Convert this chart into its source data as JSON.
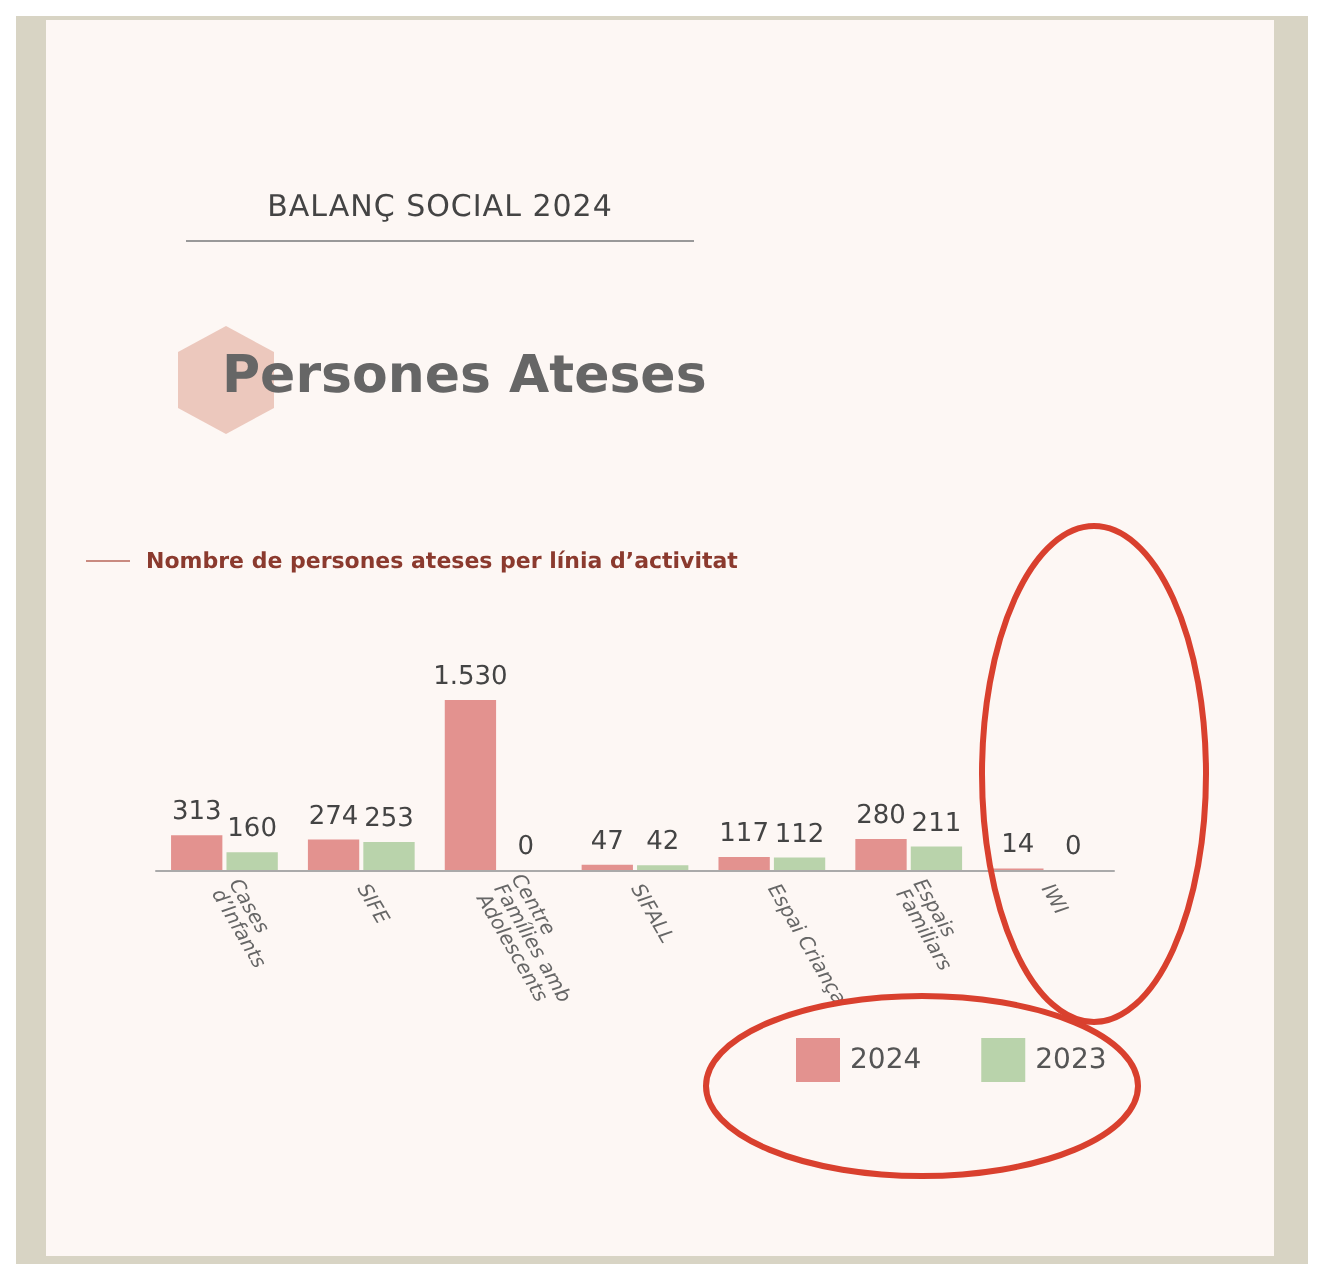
{
  "chart_data": {
    "type": "bar",
    "title": "BALANÇ SOCIAL 2024",
    "subtitle": "Persones Ateses",
    "annotations": [
      "Nombre de persones ateses per línia d’activitat"
    ],
    "categories": [
      "Cases d’Infants",
      "SIFE",
      "Centre Famílies amb Adolescents",
      "SIFALL",
      "Espai Criança",
      "Espais Familiars",
      "IWI"
    ],
    "series": [
      {
        "name": "2024",
        "color": "#e3928f",
        "values": [
          313,
          274,
          1530,
          47,
          117,
          280,
          14
        ],
        "value_labels": [
          "313",
          "274",
          "1.530",
          "47",
          "117",
          "280",
          "14"
        ]
      },
      {
        "name": "2023",
        "color": "#b9d3ab",
        "values": [
          160,
          253,
          0,
          42,
          112,
          211,
          0
        ],
        "value_labels": [
          "160",
          "253",
          "0",
          "42",
          "112",
          "211",
          "0"
        ]
      }
    ],
    "legend": "bottom"
  }
}
